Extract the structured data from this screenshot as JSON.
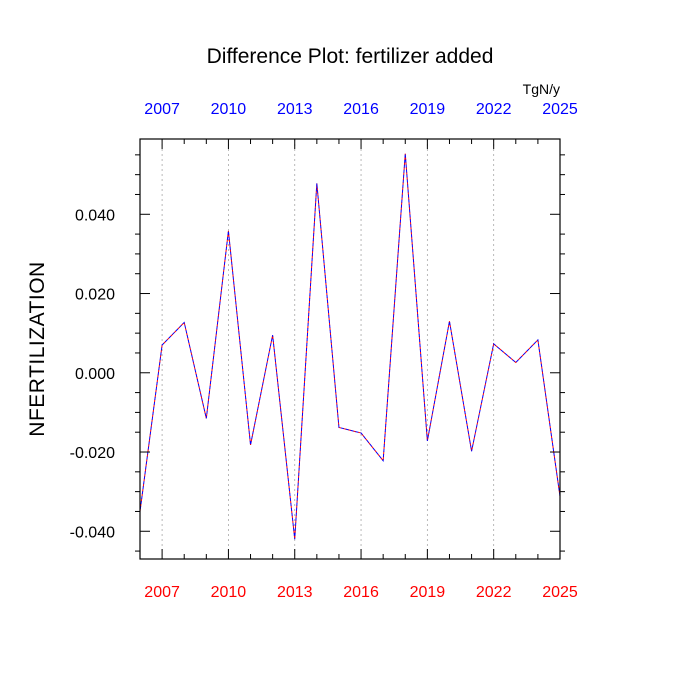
{
  "chart_data": {
    "type": "line",
    "title": "Difference Plot: fertilizer added",
    "units": "TgN/y",
    "ylabel": "NFERTILIZATION",
    "xlabel": "",
    "xlim": [
      2006,
      2025
    ],
    "ylim": [
      -0.047,
      0.059
    ],
    "x_ticks": [
      2007,
      2010,
      2013,
      2016,
      2019,
      2022,
      2025
    ],
    "x_tick_labels": [
      "2007",
      "2010",
      "2013",
      "2016",
      "2019",
      "2022",
      "2025"
    ],
    "y_ticks": [
      -0.04,
      -0.02,
      0.0,
      0.02,
      0.04
    ],
    "y_tick_labels": [
      "-0.040",
      "-0.020",
      "0.000",
      "0.020",
      "0.040"
    ],
    "grid": "vertical dashed at x ticks",
    "colors": {
      "top_axis_labels": "#0000ff",
      "bottom_axis_labels": "#ff0000",
      "series_dash_a": "#0000ff",
      "series_dash_b": "#ff0000"
    },
    "series": [
      {
        "x": [
          2006,
          2007,
          2008,
          2009,
          2010,
          2011,
          2012,
          2013,
          2014,
          2015,
          2016,
          2017,
          2018,
          2019,
          2020,
          2021,
          2022,
          2023,
          2024,
          2025
        ],
        "values": [
          -0.035,
          0.007,
          0.0127,
          -0.0115,
          0.0358,
          -0.0182,
          0.0095,
          -0.042,
          0.0478,
          -0.0138,
          -0.0152,
          -0.0222,
          0.0553,
          -0.0172,
          0.013,
          -0.0198,
          0.0073,
          0.0026,
          0.0083,
          -0.0312
        ]
      }
    ]
  }
}
